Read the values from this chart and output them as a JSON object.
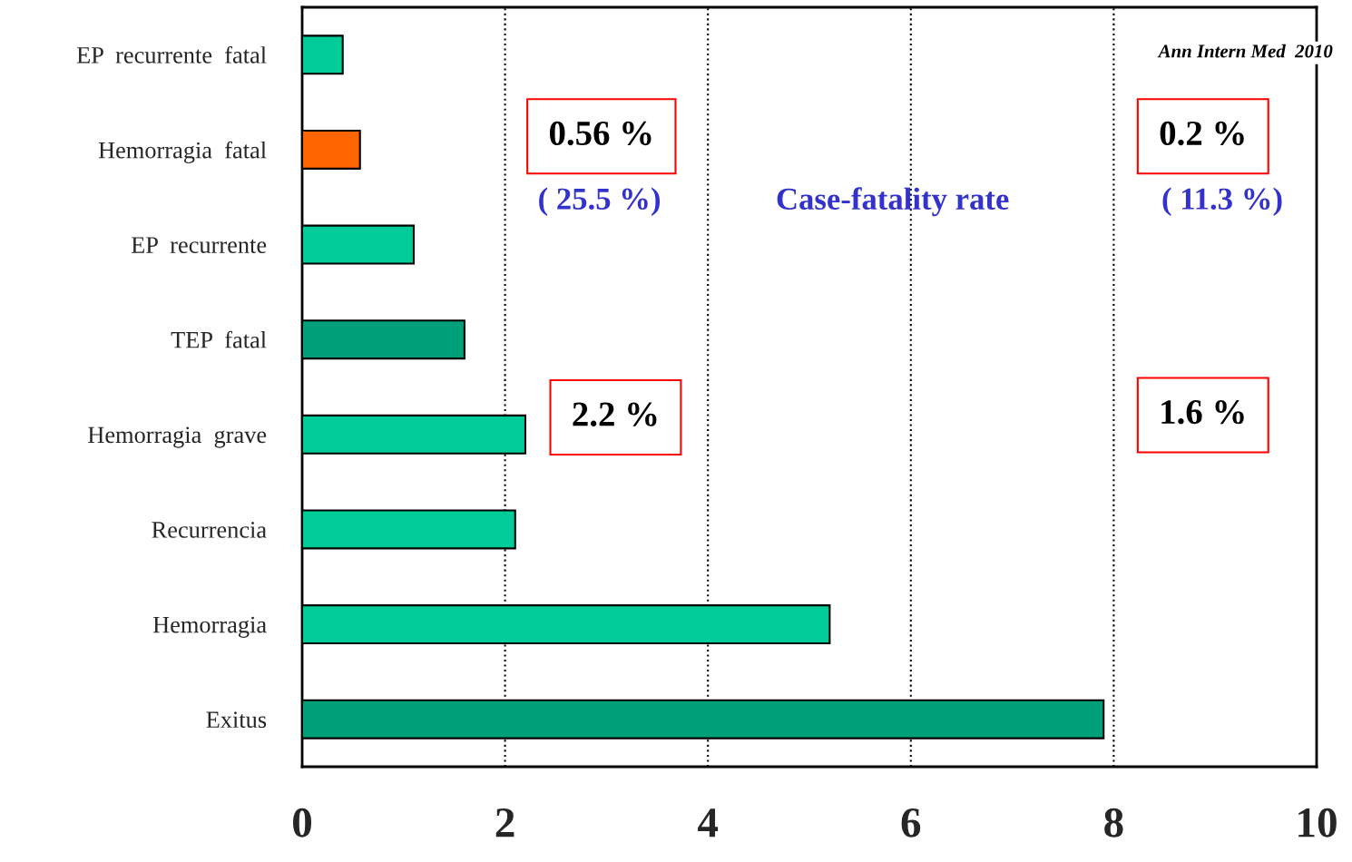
{
  "chart_data": {
    "type": "bar",
    "orientation": "horizontal",
    "categories": [
      "EP  recurrente  fatal",
      "Hemorragia  fatal",
      "EP  recurrente",
      "TEP  fatal",
      "Hemorragia  grave",
      "Recurrencia",
      "Hemorragia",
      "Exitus"
    ],
    "values": [
      0.4,
      0.57,
      1.1,
      1.6,
      2.2,
      2.1,
      5.2,
      7.9
    ],
    "colors": [
      "#00cc99",
      "#ff6600",
      "#00cc99",
      "#00a07a",
      "#00cc99",
      "#00cc99",
      "#00cc99",
      "#00a07a"
    ],
    "xlim": [
      0,
      10
    ],
    "xticks": [
      0,
      2,
      4,
      6,
      8,
      10
    ],
    "grid": "x",
    "line_style": "dotted",
    "annotations": [
      "Ann Intern Med  2010",
      "0.56 %",
      "( 25.5 %)",
      "Case-fatality rate",
      "0.2 %",
      "( 11.3 %)",
      "2.2 %",
      "1.6 %"
    ]
  }
}
